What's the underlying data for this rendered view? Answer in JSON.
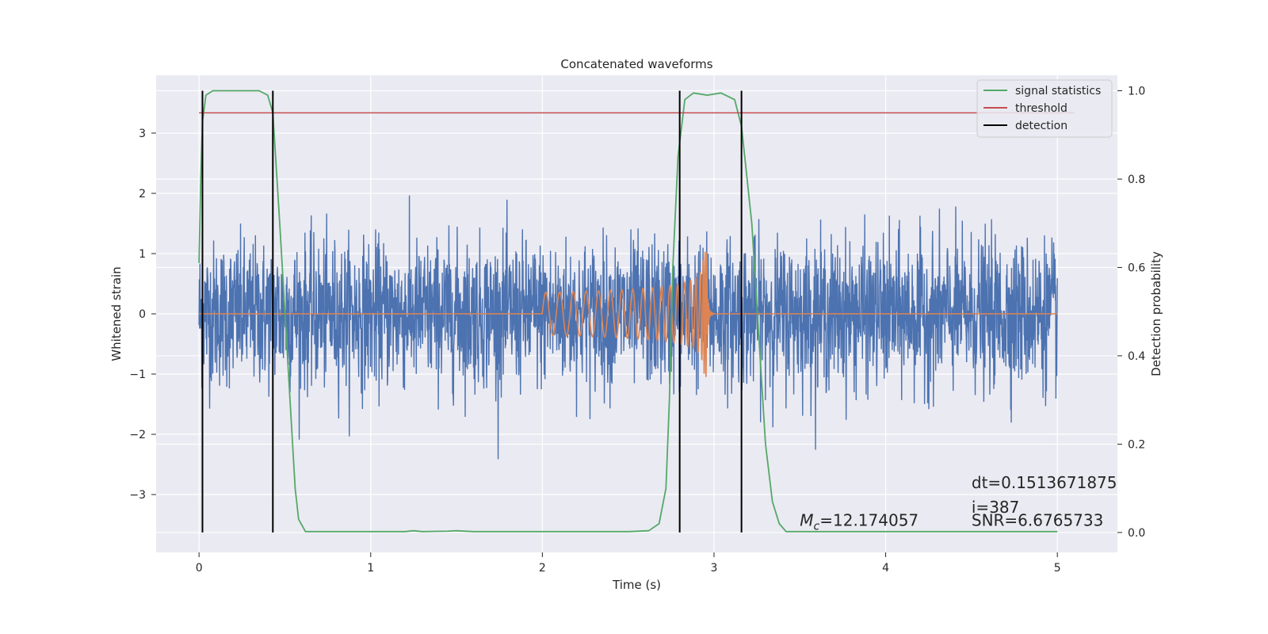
{
  "chart_data": {
    "type": "line",
    "title": "Concatenated waveforms",
    "xlabel": "Time (s)",
    "ylabel": "Whitened strain",
    "y2label": "Detection probability",
    "xlim": [
      -0.25,
      5.35
    ],
    "ylim": [
      -3.96,
      3.96
    ],
    "y2lim": [
      -0.045,
      1.035
    ],
    "xticks": [
      0,
      1,
      2,
      3,
      4,
      5
    ],
    "yticks": [
      -3,
      -2,
      -1,
      0,
      1,
      2,
      3
    ],
    "y2ticks": [
      0.0,
      0.2,
      0.4,
      0.6,
      0.8,
      1.0
    ],
    "ytick_labels": [
      "−3",
      "−2",
      "−1",
      "0",
      "1",
      "2",
      "3"
    ],
    "y2tick_labels": [
      "0.0",
      "0.2",
      "0.4",
      "0.6",
      "0.8",
      "1.0"
    ],
    "grid": true,
    "legend_position": "top-right",
    "background_color": "#eaeaf2",
    "series": [
      {
        "name": "",
        "kind": "noise",
        "axis": "left",
        "color": "#4c72b0",
        "x_range": [
          0,
          5
        ],
        "typical_amplitude": 0.6,
        "max_abs": 3.6
      },
      {
        "name": "",
        "kind": "chirp",
        "axis": "left",
        "color": "#dd8452",
        "x_range": [
          0,
          5
        ],
        "chirp_start": 2.0,
        "chirp_peak": 2.94,
        "start_amplitude": 0.12,
        "peak_amplitude": 1.05
      },
      {
        "name": "signal statistics",
        "axis": "right",
        "color": "#55a868",
        "points": [
          [
            0.0,
            0.61
          ],
          [
            0.01,
            0.8
          ],
          [
            0.02,
            0.93
          ],
          [
            0.04,
            0.99
          ],
          [
            0.08,
            1.0
          ],
          [
            0.35,
            1.0
          ],
          [
            0.4,
            0.99
          ],
          [
            0.43,
            0.95
          ],
          [
            0.47,
            0.7
          ],
          [
            0.5,
            0.5
          ],
          [
            0.53,
            0.3
          ],
          [
            0.56,
            0.1
          ],
          [
            0.58,
            0.03
          ],
          [
            0.62,
            0.002
          ],
          [
            1.2,
            0.002
          ],
          [
            1.25,
            0.004
          ],
          [
            1.3,
            0.002
          ],
          [
            1.45,
            0.003
          ],
          [
            1.5,
            0.004
          ],
          [
            1.6,
            0.002
          ],
          [
            2.5,
            0.002
          ],
          [
            2.62,
            0.004
          ],
          [
            2.68,
            0.02
          ],
          [
            2.72,
            0.1
          ],
          [
            2.74,
            0.3
          ],
          [
            2.76,
            0.6
          ],
          [
            2.79,
            0.85
          ],
          [
            2.83,
            0.98
          ],
          [
            2.88,
            0.995
          ],
          [
            2.96,
            0.99
          ],
          [
            3.04,
            0.995
          ],
          [
            3.12,
            0.98
          ],
          [
            3.16,
            0.92
          ],
          [
            3.22,
            0.7
          ],
          [
            3.26,
            0.45
          ],
          [
            3.3,
            0.2
          ],
          [
            3.34,
            0.07
          ],
          [
            3.38,
            0.02
          ],
          [
            3.42,
            0.002
          ],
          [
            5.0,
            0.002
          ]
        ]
      },
      {
        "name": "threshold",
        "axis": "right",
        "color": "#c44e52",
        "x_range": [
          0,
          5.1
        ],
        "value": 0.95
      },
      {
        "name": "detection",
        "axis": "right",
        "color": "#000000",
        "x": [
          0.02,
          0.43,
          2.8,
          3.16
        ],
        "y_range": [
          0.0,
          1.0
        ]
      }
    ],
    "annotations": [
      {
        "text_main": "M",
        "text_sub": "c",
        "text_rest": "=12.174057",
        "x": 3.5,
        "y": 0.015
      },
      {
        "text": "dt=0.1513671875",
        "x": 4.5,
        "y": 0.1
      },
      {
        "text": "i=387",
        "x": 4.5,
        "y": 0.045
      },
      {
        "text": "SNR=6.6765733",
        "x": 4.5,
        "y": 0.015
      }
    ]
  }
}
